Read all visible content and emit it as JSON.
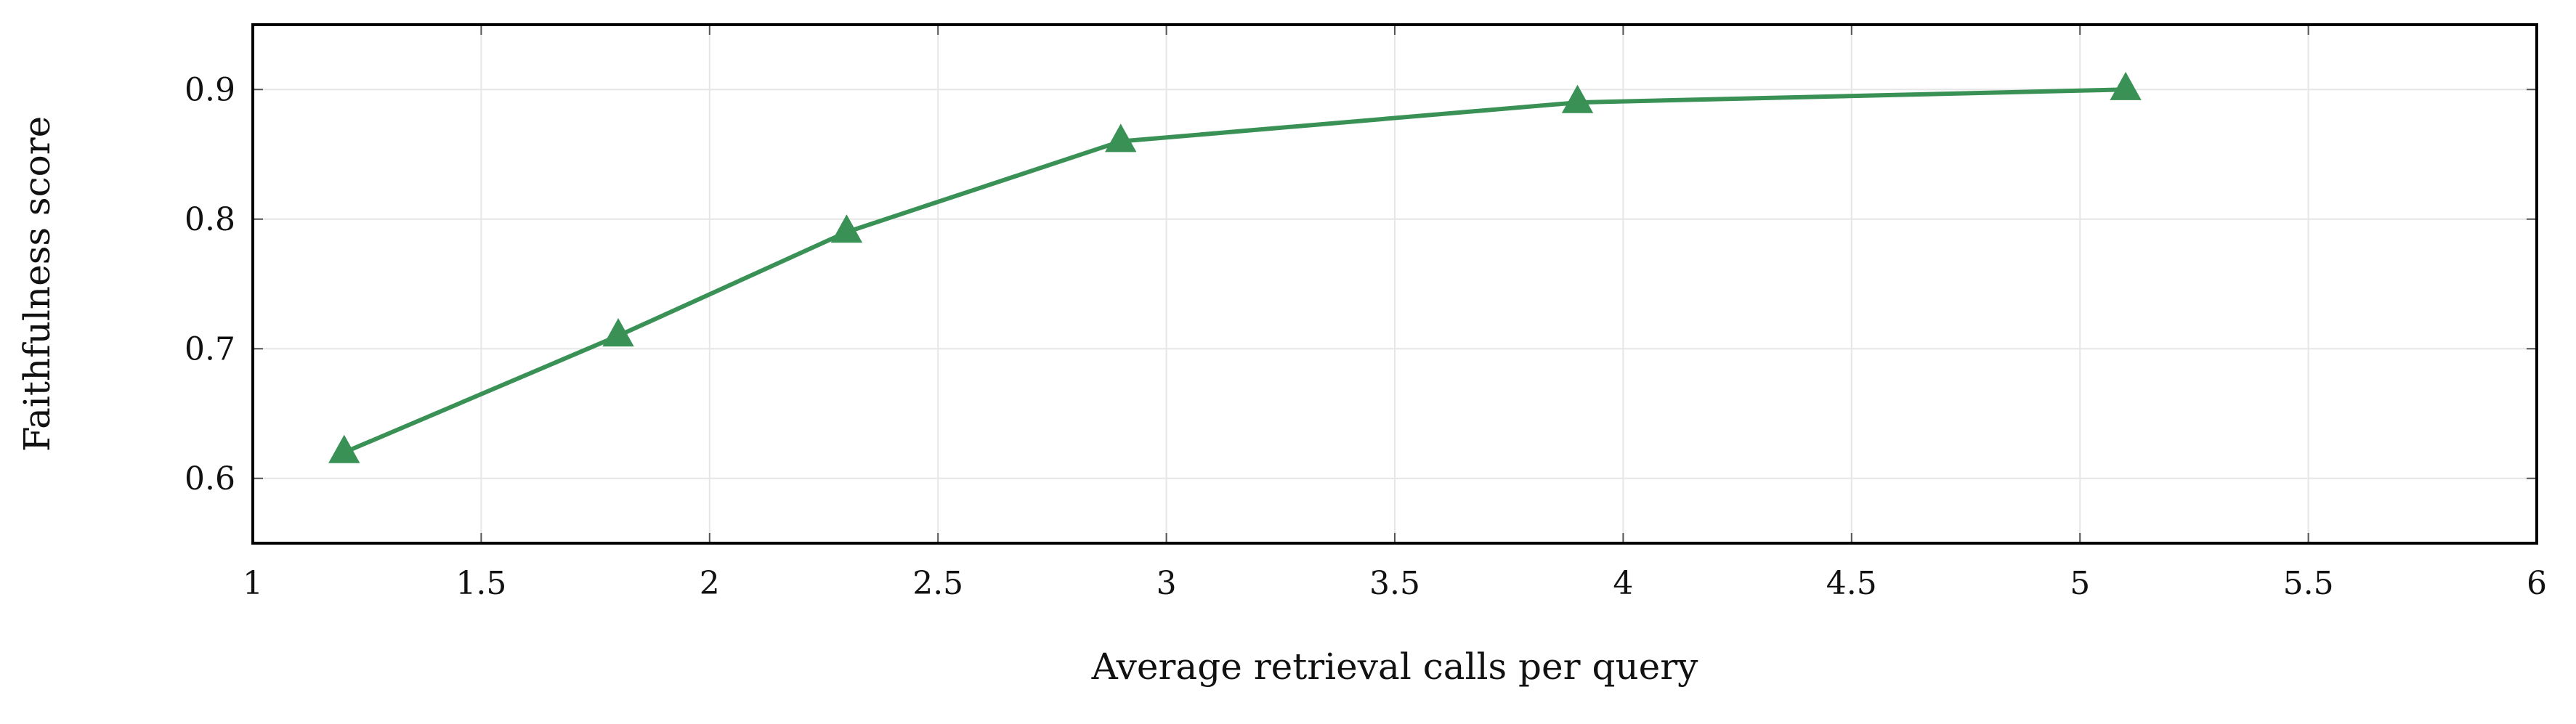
{
  "chart_data": {
    "type": "line",
    "title": "",
    "xlabel": "Average retrieval calls per query",
    "ylabel": "Faithfulness score",
    "xlim": [
      1,
      6
    ],
    "ylim": [
      0.55,
      0.95
    ],
    "x_ticks": [
      1,
      1.5,
      2,
      2.5,
      3,
      3.5,
      4,
      4.5,
      5,
      5.5,
      6
    ],
    "y_ticks": [
      0.6,
      0.7,
      0.8,
      0.9
    ],
    "x_tick_labels": [
      "1",
      "1.5",
      "2",
      "2.5",
      "3",
      "3.5",
      "4",
      "4.5",
      "5",
      "5.5",
      "6"
    ],
    "y_tick_labels": [
      "0.6",
      "0.7",
      "0.8",
      "0.9"
    ],
    "grid": true,
    "series": [
      {
        "color": "#3a9156",
        "marker": "triangle",
        "x": [
          1.2,
          1.8,
          2.3,
          2.9,
          3.9,
          5.1
        ],
        "y": [
          0.62,
          0.71,
          0.79,
          0.86,
          0.89,
          0.9
        ]
      }
    ]
  }
}
